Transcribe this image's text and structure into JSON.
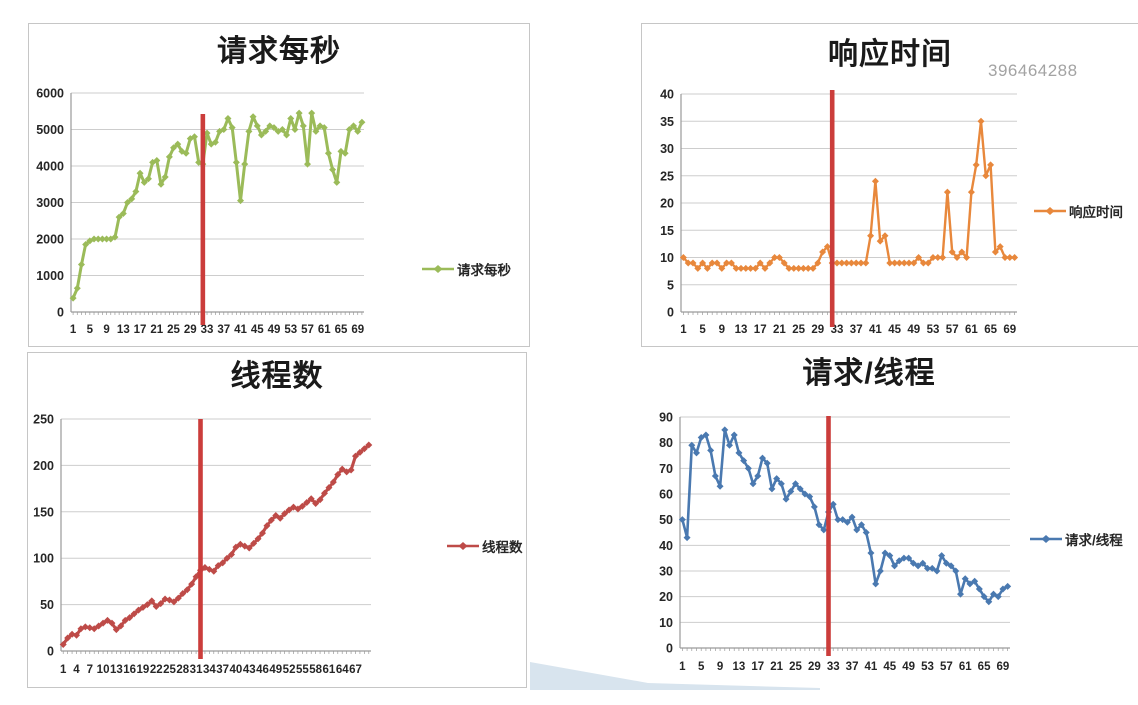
{
  "page": {
    "watermark": "396464288"
  },
  "colors": {
    "requests_per_second": "#9BBB59",
    "response_time": "#E8883C",
    "thread_count": "#BE4B48",
    "requests_per_thread": "#4A79B0",
    "threshold_line": "#CB3D3B",
    "gridline": "#CDCDCD",
    "axis": "#9A9A9A",
    "axis_text": "#262626"
  },
  "chart_data": [
    {
      "id": "requests-per-second",
      "type": "line",
      "title": "请求每秒",
      "legend": "请求每秒",
      "legend_position": "right",
      "color": "#9BBB59",
      "ylim": [
        0,
        6000
      ],
      "y_tick_step": 1000,
      "x_tick_start": 1,
      "x_tick_step": 4,
      "x_tick_labels": [
        "1",
        "5",
        "9",
        "13",
        "17",
        "21",
        "25",
        "29",
        "33",
        "37",
        "41",
        "45",
        "49",
        "53",
        "57",
        "61",
        "65",
        "69"
      ],
      "grid": true,
      "annotation_vline_x": 32,
      "values": [
        380,
        650,
        1300,
        1850,
        1950,
        2000,
        2000,
        2000,
        2000,
        2000,
        2050,
        2600,
        2700,
        3000,
        3100,
        3300,
        3800,
        3550,
        3650,
        4100,
        4150,
        3500,
        3700,
        4250,
        4500,
        4600,
        4400,
        4350,
        4750,
        4800,
        4100,
        4050,
        4900,
        4600,
        4650,
        4950,
        5000,
        5300,
        5050,
        4100,
        3050,
        4050,
        4950,
        5350,
        5100,
        4850,
        4950,
        5100,
        5050,
        4950,
        5000,
        4850,
        5300,
        5000,
        5450,
        5100,
        4050,
        5450,
        4950,
        5100,
        5050,
        4350,
        3900,
        3550,
        4400,
        4350,
        5000,
        5100,
        4950,
        5200
      ]
    },
    {
      "id": "response-time",
      "type": "line",
      "title": "响应时间",
      "legend": "响应时间",
      "legend_position": "right",
      "color": "#E8883C",
      "ylim": [
        0,
        40
      ],
      "y_tick_step": 5,
      "x_tick_start": 1,
      "x_tick_step": 4,
      "x_tick_labels": [
        "1",
        "5",
        "9",
        "13",
        "17",
        "21",
        "25",
        "29",
        "33",
        "37",
        "41",
        "45",
        "49",
        "53",
        "57",
        "61",
        "65",
        "69"
      ],
      "grid": true,
      "annotation_vline_x": 32,
      "values": [
        10,
        9,
        9,
        8,
        9,
        8,
        9,
        9,
        8,
        9,
        9,
        8,
        8,
        8,
        8,
        8,
        9,
        8,
        9,
        10,
        10,
        9,
        8,
        8,
        8,
        8,
        8,
        8,
        9,
        11,
        12,
        9,
        9,
        9,
        9,
        9,
        9,
        9,
        9,
        14,
        24,
        13,
        14,
        9,
        9,
        9,
        9,
        9,
        9,
        10,
        9,
        9,
        10,
        10,
        10,
        22,
        11,
        10,
        11,
        10,
        22,
        27,
        35,
        25,
        27,
        11,
        12,
        10,
        10,
        10
      ]
    },
    {
      "id": "thread-count",
      "type": "line",
      "title": "线程数",
      "legend": "线程数",
      "legend_position": "right",
      "color": "#BE4B48",
      "ylim": [
        0,
        250
      ],
      "y_tick_step": 50,
      "x_tick_start": 1,
      "x_tick_step": 3,
      "x_tick_labels": [
        "1",
        "4",
        "7",
        "10",
        "13",
        "16",
        "19",
        "22",
        "25",
        "28",
        "31",
        "34",
        "37",
        "40",
        "43",
        "46",
        "49",
        "52",
        "55",
        "58",
        "61",
        "64",
        "67"
      ],
      "grid": true,
      "annotation_vline_x": 32,
      "values": [
        7,
        14,
        18,
        17,
        24,
        26,
        25,
        24,
        27,
        30,
        33,
        30,
        23,
        27,
        33,
        36,
        40,
        44,
        47,
        50,
        54,
        48,
        51,
        56,
        55,
        53,
        57,
        62,
        66,
        72,
        80,
        87,
        90,
        88,
        86,
        92,
        95,
        100,
        104,
        112,
        115,
        113,
        111,
        116,
        121,
        127,
        135,
        141,
        146,
        143,
        148,
        152,
        155,
        153,
        156,
        160,
        164,
        159,
        163,
        170,
        176,
        182,
        190,
        196,
        193,
        195,
        210,
        214,
        218,
        222
      ]
    },
    {
      "id": "requests-per-thread",
      "type": "line",
      "title": "请求/线程",
      "legend": "请求/线程",
      "legend_position": "right",
      "color": "#4A79B0",
      "ylim": [
        0,
        90
      ],
      "y_tick_step": 10,
      "x_tick_start": 1,
      "x_tick_step": 4,
      "x_tick_labels": [
        "1",
        "5",
        "9",
        "13",
        "17",
        "21",
        "25",
        "29",
        "33",
        "37",
        "41",
        "45",
        "49",
        "53",
        "57",
        "61",
        "65",
        "69"
      ],
      "grid": true,
      "annotation_vline_x": 32,
      "values": [
        50,
        43,
        79,
        76,
        82,
        83,
        77,
        67,
        63,
        85,
        79,
        83,
        76,
        73,
        70,
        64,
        67,
        74,
        72,
        62,
        66,
        64,
        58,
        61,
        64,
        62,
        60,
        59,
        55,
        48,
        46,
        53,
        56,
        50,
        50,
        49,
        51,
        46,
        48,
        45,
        37,
        25,
        30,
        37,
        36,
        32,
        34,
        35,
        35,
        33,
        32,
        33,
        31,
        31,
        30,
        36,
        33,
        32,
        30,
        21,
        27,
        25,
        26,
        23,
        20,
        18,
        21,
        20,
        23,
        24
      ]
    }
  ]
}
